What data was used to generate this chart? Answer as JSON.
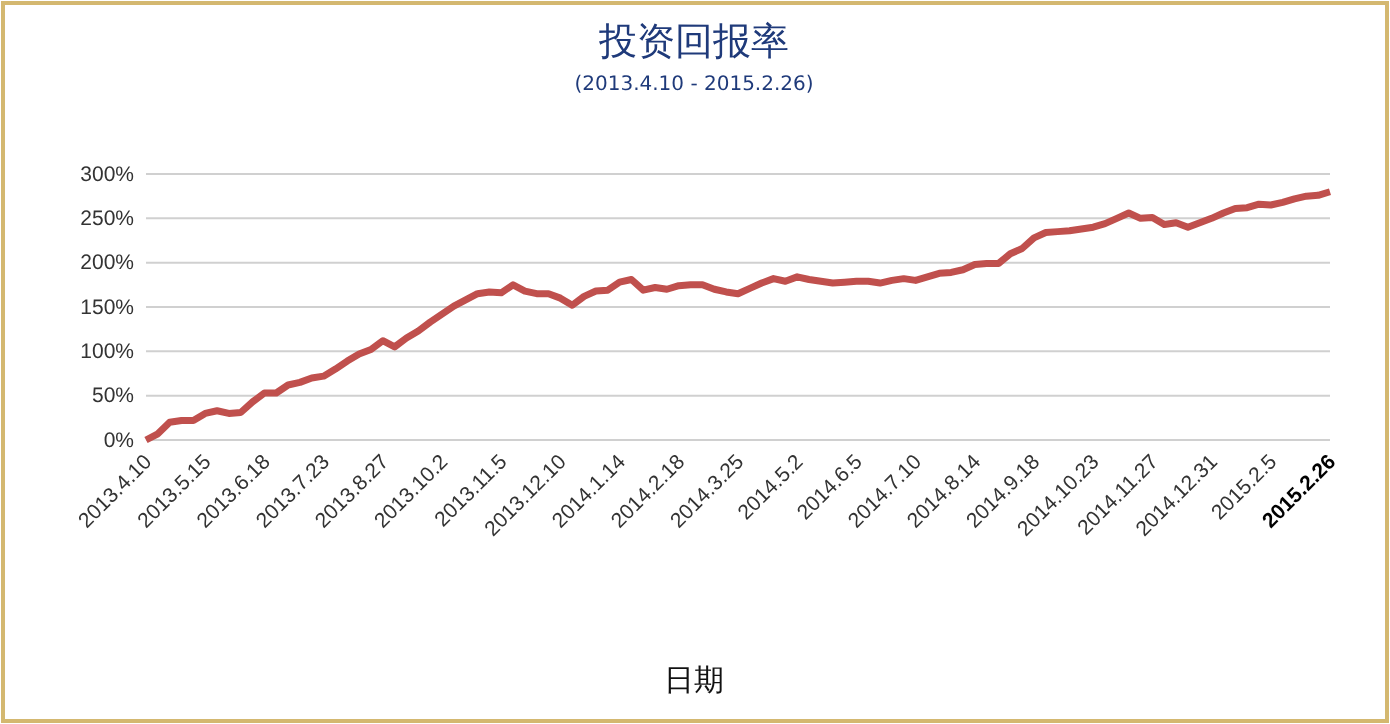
{
  "chart_data": {
    "type": "line",
    "title": "投资回报率",
    "subtitle": "(2013.4.10 - 2015.2.26)",
    "xlabel": "日期",
    "categories": [
      "2013.4.10",
      null,
      null,
      null,
      null,
      "2013.5.15",
      null,
      null,
      null,
      null,
      "2013.6.18",
      null,
      null,
      null,
      null,
      "2013.7.23",
      null,
      null,
      null,
      null,
      "2013.8.27",
      null,
      null,
      null,
      null,
      "2013.10.2",
      null,
      null,
      null,
      null,
      "2013.11.5",
      null,
      null,
      null,
      null,
      "2013.12.10",
      null,
      null,
      null,
      null,
      "2014.1.14",
      null,
      null,
      null,
      null,
      "2014.2.18",
      null,
      null,
      null,
      null,
      "2014.3.25",
      null,
      null,
      null,
      null,
      "2014.5.2",
      null,
      null,
      null,
      null,
      "2014.6.5",
      null,
      null,
      null,
      null,
      "2014.7.10",
      null,
      null,
      null,
      null,
      "2014.8.14",
      null,
      null,
      null,
      null,
      "2014.9.18",
      null,
      null,
      null,
      null,
      "2014.10.23",
      null,
      null,
      null,
      null,
      "2014.11.27",
      null,
      null,
      null,
      null,
      "2014.12.31",
      null,
      null,
      null,
      null,
      "2015.2.5",
      null,
      null,
      null,
      null,
      "2015.2.26"
    ],
    "series": [
      {
        "color": "#c0504d",
        "values": [
          0,
          7,
          20,
          22,
          22,
          30,
          33,
          30,
          31,
          43,
          53,
          53,
          62,
          65,
          70,
          72,
          80,
          89,
          97,
          102,
          112,
          105,
          115,
          123,
          133,
          142,
          151,
          158,
          165,
          167,
          166,
          175,
          168,
          165,
          165,
          160,
          152,
          162,
          168,
          169,
          178,
          181,
          169,
          172,
          170,
          174,
          175,
          175,
          170,
          167,
          165,
          171,
          177,
          182,
          179,
          184,
          181,
          179,
          177,
          178,
          179,
          179,
          177,
          180,
          182,
          180,
          184,
          188,
          189,
          192,
          198,
          199,
          199,
          210,
          216,
          228,
          234,
          235,
          236,
          238,
          240,
          244,
          250,
          256,
          250,
          251,
          243,
          245,
          240,
          245,
          250,
          256,
          261,
          262,
          266,
          265,
          268,
          272,
          275,
          276,
          280
        ]
      }
    ],
    "ylim": [
      0,
      300
    ],
    "yticks": [
      {
        "value": 0,
        "label": "0%"
      },
      {
        "value": 50,
        "label": "50%"
      },
      {
        "value": 100,
        "label": "100%"
      },
      {
        "value": 150,
        "label": "150%"
      },
      {
        "value": 200,
        "label": "200%"
      },
      {
        "value": 250,
        "label": "250%"
      },
      {
        "value": 300,
        "label": "300%"
      }
    ],
    "grid": "y",
    "marker": "none",
    "line_style": "solid"
  }
}
